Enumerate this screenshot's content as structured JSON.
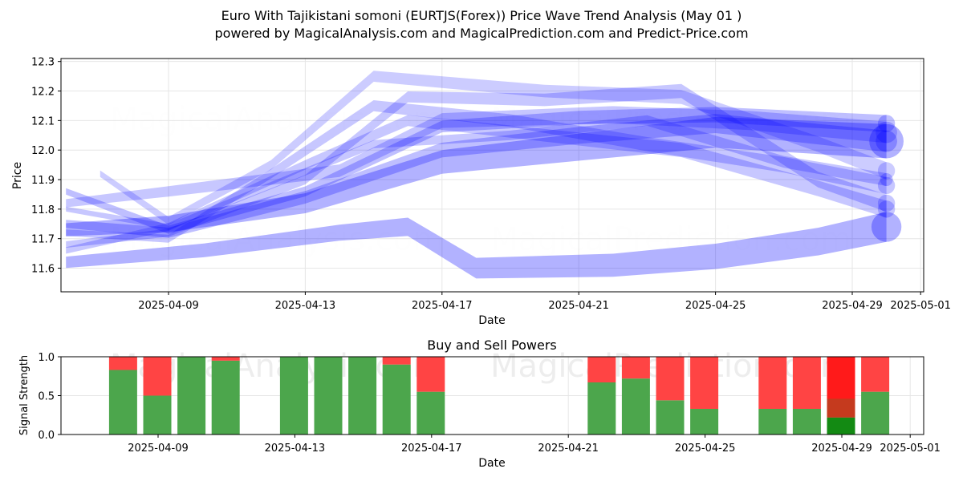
{
  "title_line1": "Euro With Tajikistani somoni (EURTJS(Forex)) Price Wave Trend Analysis (May 01 )",
  "title_line2": "powered by MagicalAnalysis.com and MagicalPrediction.com and Predict-Price.com",
  "watermarks": [
    "MagicalAnalysis.com",
    "MagicalPrediction.com"
  ],
  "colors": {
    "wave": "#0000ff",
    "buy": "#4ca64c",
    "sell": "#ff4444",
    "sell_strong": "#ff1a1a",
    "buy_dark": "#138a13",
    "mid_dark": "#c53a1e"
  },
  "chart_data": [
    {
      "type": "area",
      "title": "",
      "xlabel": "Date",
      "ylabel": "Price",
      "xlim": [
        "2025-04-05",
        "2025-05-01"
      ],
      "ylim": [
        11.52,
        12.31
      ],
      "yticks": [
        11.6,
        11.7,
        11.8,
        11.9,
        12.0,
        12.1,
        12.2,
        12.3
      ],
      "xticks": [
        "2025-04-09",
        "2025-04-13",
        "2025-04-17",
        "2025-04-21",
        "2025-04-25",
        "2025-04-29",
        "2025-05-01"
      ],
      "grid": true,
      "series": [
        {
          "x": [
            "2025-04-06",
            "2025-04-10",
            "2025-04-14",
            "2025-04-16",
            "2025-04-18",
            "2025-04-22",
            "2025-04-25",
            "2025-04-28",
            "2025-04-30"
          ],
          "y": [
            11.62,
            11.66,
            11.72,
            11.74,
            11.6,
            11.61,
            11.64,
            11.69,
            11.74
          ],
          "width": 0.07,
          "opacity": 0.3
        },
        {
          "x": [
            "2025-04-06",
            "2025-04-09",
            "2025-04-13",
            "2025-04-17",
            "2025-04-21",
            "2025-04-25",
            "2025-04-30"
          ],
          "y": [
            11.73,
            11.75,
            11.82,
            11.96,
            12.01,
            12.06,
            12.03
          ],
          "width": 0.08,
          "opacity": 0.3
        },
        {
          "x": [
            "2025-04-06",
            "2025-04-09",
            "2025-04-13",
            "2025-04-17",
            "2025-04-21",
            "2025-04-25",
            "2025-04-30"
          ],
          "y": [
            11.86,
            11.73,
            11.86,
            12.08,
            12.11,
            12.12,
            12.09
          ],
          "width": 0.04,
          "opacity": 0.25
        },
        {
          "x": [
            "2025-04-06",
            "2025-04-09",
            "2025-04-12",
            "2025-04-15",
            "2025-04-19",
            "2025-04-23",
            "2025-04-27",
            "2025-04-30"
          ],
          "y": [
            11.72,
            11.7,
            11.92,
            12.15,
            12.1,
            12.02,
            11.95,
            11.88
          ],
          "width": 0.04,
          "opacity": 0.22
        },
        {
          "x": [
            "2025-04-07",
            "2025-04-09",
            "2025-04-12",
            "2025-04-15",
            "2025-04-20",
            "2025-04-24",
            "2025-04-28",
            "2025-04-30"
          ],
          "y": [
            11.92,
            11.76,
            11.95,
            12.25,
            12.2,
            12.18,
            12.02,
            11.93
          ],
          "width": 0.04,
          "opacity": 0.2
        },
        {
          "x": [
            "2025-04-06",
            "2025-04-09",
            "2025-04-13",
            "2025-04-16",
            "2025-04-20",
            "2025-04-24",
            "2025-04-28",
            "2025-04-30"
          ],
          "y": [
            11.68,
            11.72,
            11.9,
            12.18,
            12.17,
            12.2,
            11.9,
            11.82
          ],
          "width": 0.04,
          "opacity": 0.22
        },
        {
          "x": [
            "2025-04-06",
            "2025-04-09",
            "2025-04-13",
            "2025-04-16",
            "2025-04-20",
            "2025-04-24",
            "2025-04-28",
            "2025-04-30"
          ],
          "y": [
            11.66,
            11.74,
            11.95,
            12.1,
            12.05,
            12.0,
            11.87,
            11.8
          ],
          "width": 0.04,
          "opacity": 0.22
        },
        {
          "x": [
            "2025-04-06",
            "2025-04-09",
            "2025-04-12",
            "2025-04-15",
            "2025-04-19",
            "2025-04-23",
            "2025-04-27",
            "2025-04-30"
          ],
          "y": [
            11.8,
            11.74,
            11.88,
            12.02,
            12.05,
            12.1,
            11.96,
            11.9
          ],
          "width": 0.03,
          "opacity": 0.22
        },
        {
          "x": [
            "2025-04-06",
            "2025-04-09",
            "2025-04-13",
            "2025-04-17",
            "2025-04-21",
            "2025-04-25",
            "2025-04-30"
          ],
          "y": [
            11.75,
            11.72,
            11.84,
            12.0,
            12.05,
            12.09,
            12.03
          ],
          "width": 0.05,
          "opacity": 0.25
        },
        {
          "x": [
            "2025-04-06",
            "2025-04-09",
            "2025-04-14",
            "2025-04-17",
            "2025-04-22",
            "2025-04-26",
            "2025-04-30"
          ],
          "y": [
            11.82,
            11.86,
            11.93,
            12.1,
            12.12,
            12.1,
            12.06
          ],
          "width": 0.05,
          "opacity": 0.22
        }
      ]
    },
    {
      "type": "bar",
      "title": "Buy and Sell Powers",
      "xlabel": "Date",
      "ylabel": "Signal Strength",
      "ylim": [
        0,
        1.0
      ],
      "yticks": [
        0.0,
        0.5,
        1.0
      ],
      "xticks": [
        "2025-04-09",
        "2025-04-13",
        "2025-04-17",
        "2025-04-21",
        "2025-04-25",
        "2025-04-29",
        "2025-05-01"
      ],
      "categories": [
        "2025-04-08",
        "2025-04-09",
        "2025-04-10",
        "2025-04-11",
        "2025-04-13",
        "2025-04-14",
        "2025-04-15",
        "2025-04-16",
        "2025-04-17",
        "2025-04-22",
        "2025-04-23",
        "2025-04-24",
        "2025-04-25",
        "2025-04-27",
        "2025-04-28",
        "2025-04-29",
        "2025-04-30"
      ],
      "series": [
        {
          "name": "",
          "values": [
            0.83,
            0.5,
            1.0,
            0.95,
            1.0,
            1.0,
            1.0,
            0.9,
            0.55,
            0.67,
            0.72,
            0.44,
            0.33,
            0.33,
            0.33,
            0.22,
            0.55
          ]
        },
        {
          "name": "",
          "values": [
            0.17,
            0.5,
            0.0,
            0.05,
            0.0,
            0.0,
            0.0,
            0.1,
            0.45,
            0.33,
            0.28,
            0.56,
            0.67,
            0.67,
            0.67,
            0.78,
            0.45
          ]
        }
      ]
    }
  ]
}
